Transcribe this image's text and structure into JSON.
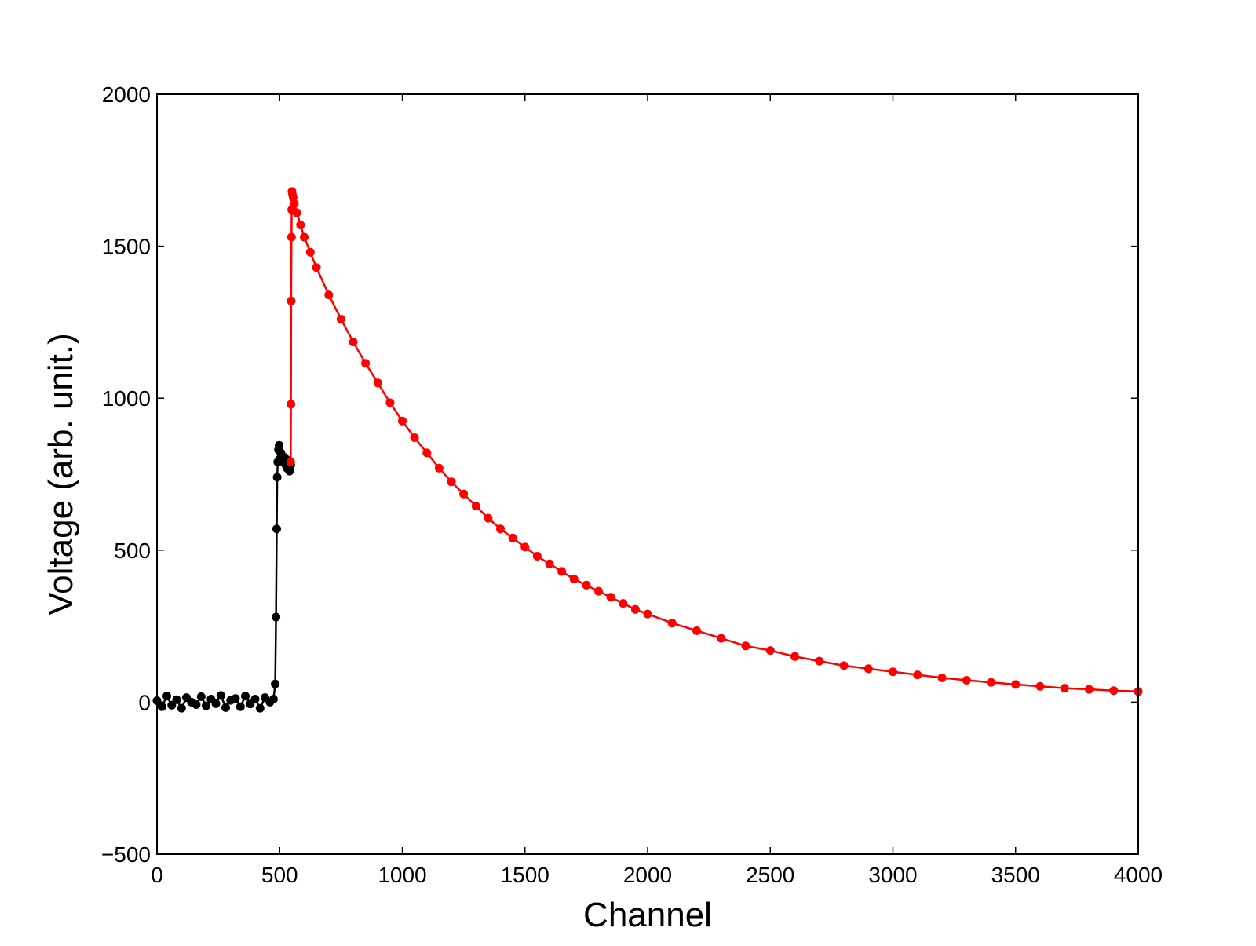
{
  "chart_data": {
    "type": "scatter",
    "title": "",
    "xlabel": "Channel",
    "ylabel": "Voltage (arb. unit.)",
    "xlim": [
      0,
      4000
    ],
    "ylim": [
      -500,
      2000
    ],
    "grid": false,
    "x_ticks": [
      {
        "value": 0,
        "label": "0"
      },
      {
        "value": 500,
        "label": "500"
      },
      {
        "value": 1000,
        "label": "1000"
      },
      {
        "value": 1500,
        "label": "1500"
      },
      {
        "value": 2000,
        "label": "2000"
      },
      {
        "value": 2500,
        "label": "2500"
      },
      {
        "value": 3000,
        "label": "3000"
      },
      {
        "value": 3500,
        "label": "3500"
      },
      {
        "value": 4000,
        "label": "4000"
      }
    ],
    "y_ticks": [
      {
        "value": -500,
        "label": "−500"
      },
      {
        "value": 0,
        "label": "0"
      },
      {
        "value": 500,
        "label": "500"
      },
      {
        "value": 1000,
        "label": "1000"
      },
      {
        "value": 1500,
        "label": "1500"
      },
      {
        "value": 2000,
        "label": "2000"
      }
    ],
    "series": [
      {
        "color": "#000000",
        "x": [
          0,
          20,
          40,
          60,
          80,
          100,
          120,
          140,
          160,
          180,
          200,
          220,
          240,
          260,
          280,
          300,
          320,
          340,
          360,
          380,
          400,
          420,
          440,
          460,
          475,
          482,
          485,
          488,
          490,
          492,
          495,
          498,
          500,
          505,
          510,
          515,
          520,
          525,
          530,
          535,
          540,
          545
        ],
        "y": [
          5,
          -15,
          20,
          -10,
          8,
          -20,
          15,
          0,
          -8,
          18,
          -12,
          10,
          -5,
          22,
          -18,
          6,
          12,
          -15,
          20,
          -6,
          10,
          -20,
          15,
          0,
          10,
          60,
          280,
          570,
          740,
          790,
          830,
          845,
          800,
          820,
          810,
          790,
          805,
          780,
          770,
          795,
          760,
          780
        ]
      },
      {
        "color": "#ff0000",
        "x": [
          545,
          546,
          547,
          548,
          549,
          550,
          552,
          555,
          560,
          570,
          585,
          600,
          625,
          650,
          700,
          750,
          800,
          850,
          900,
          950,
          1000,
          1050,
          1100,
          1150,
          1200,
          1250,
          1300,
          1350,
          1400,
          1450,
          1500,
          1550,
          1600,
          1650,
          1700,
          1750,
          1800,
          1850,
          1900,
          1950,
          2000,
          2100,
          2200,
          2300,
          2400,
          2500,
          2600,
          2700,
          2800,
          2900,
          3000,
          3100,
          3200,
          3300,
          3400,
          3500,
          3600,
          3700,
          3800,
          3900,
          4000
        ],
        "y": [
          790,
          980,
          1320,
          1530,
          1620,
          1680,
          1670,
          1660,
          1640,
          1610,
          1570,
          1530,
          1480,
          1430,
          1340,
          1260,
          1185,
          1115,
          1050,
          985,
          925,
          870,
          820,
          770,
          725,
          685,
          645,
          605,
          570,
          540,
          510,
          480,
          455,
          430,
          405,
          385,
          365,
          345,
          325,
          305,
          290,
          260,
          235,
          210,
          185,
          170,
          150,
          135,
          120,
          110,
          100,
          90,
          80,
          72,
          65,
          58,
          52,
          46,
          42,
          38,
          35
        ]
      }
    ]
  }
}
